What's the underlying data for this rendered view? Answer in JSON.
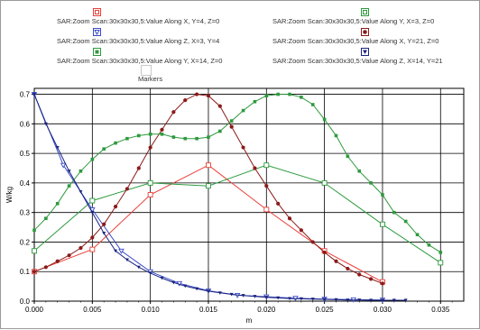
{
  "legend": {
    "items": [
      {
        "label": "SAR:Zoom Scan:30x30x30,5:Value Along X, Y=4, Z=0",
        "color": "#e8403a",
        "marker": "open-square"
      },
      {
        "label": "SAR:Zoom Scan:30x30x30,5:Value Along Y, X=3, Z=0",
        "color": "#2d9a3e",
        "marker": "open-square"
      },
      {
        "label": "SAR:Zoom Scan:30x30x30,5:Value Along Z, X=3, Y=4",
        "color": "#3a4cc9",
        "marker": "open-triangle-down"
      },
      {
        "label": "SAR:Zoom Scan:30x30x30,5:Value Along X, Y=21, Z=0",
        "color": "#8b1a1a",
        "marker": "filled-circle"
      },
      {
        "label": "SAR:Zoom Scan:30x30x30,5:Value Along Y, X=14, Z=0",
        "color": "#2d9a3e",
        "marker": "filled-square"
      },
      {
        "label": "SAR:Zoom Scan:30x30x30,5:Value Along Z, X=14, Y=21",
        "color": "#1a237e",
        "marker": "filled-triangle-down"
      }
    ],
    "markers_label": "Markers"
  },
  "chart_data": {
    "type": "line",
    "xlabel": "m",
    "ylabel": "W/kg",
    "xlim": [
      0,
      0.037
    ],
    "ylim": [
      0,
      0.72
    ],
    "x_ticks": [
      "0.000",
      "0.005",
      "0.010",
      "0.015",
      "0.020",
      "0.025",
      "0.030",
      "0.035"
    ],
    "y_ticks": [
      "0.0",
      "0.1",
      "0.2",
      "0.3",
      "0.4",
      "0.5",
      "0.6",
      "0.7"
    ],
    "grid": true,
    "series": [
      {
        "name": "SAR:Zoom Scan:30x30x30,5:Value Along X, Y=4, Z=0",
        "color": "#e8403a",
        "marker": "open-square",
        "x": [
          0,
          0.005,
          0.01,
          0.015,
          0.02,
          0.025,
          0.03
        ],
        "y": [
          0.1,
          0.175,
          0.36,
          0.46,
          0.31,
          0.17,
          0.065
        ]
      },
      {
        "name": "SAR:Zoom Scan:30x30x30,5:Value Along Y, X=3, Z=0",
        "color": "#2d9a3e",
        "marker": "open-square",
        "x": [
          0,
          0.005,
          0.01,
          0.015,
          0.02,
          0.025,
          0.03,
          0.035
        ],
        "y": [
          0.17,
          0.34,
          0.4,
          0.39,
          0.46,
          0.4,
          0.26,
          0.13
        ]
      },
      {
        "name": "SAR:Zoom Scan:30x30x30,5:Value Along Z, X=3, Y=4",
        "color": "#3a4cc9",
        "marker": "open-triangle-down",
        "x": [
          0,
          0.0025,
          0.005,
          0.0075,
          0.01,
          0.0125,
          0.015,
          0.0175,
          0.02,
          0.0225,
          0.025,
          0.0275,
          0.03
        ],
        "y": [
          0.7,
          0.46,
          0.31,
          0.17,
          0.1,
          0.06,
          0.035,
          0.02,
          0.015,
          0.01,
          0.007,
          0.005,
          0.004
        ]
      },
      {
        "name": "SAR:Zoom Scan:30x30x30,5:Value Along X, Y=21, Z=0",
        "color": "#8b1a1a",
        "marker": "filled-circle",
        "x": [
          0,
          0.001,
          0.002,
          0.003,
          0.004,
          0.005,
          0.006,
          0.007,
          0.008,
          0.009,
          0.01,
          0.011,
          0.012,
          0.013,
          0.014,
          0.015,
          0.016,
          0.017,
          0.018,
          0.019,
          0.02,
          0.021,
          0.022,
          0.023,
          0.024,
          0.025,
          0.026,
          0.027,
          0.028,
          0.029,
          0.03
        ],
        "y": [
          0.1,
          0.115,
          0.135,
          0.155,
          0.18,
          0.215,
          0.26,
          0.32,
          0.38,
          0.45,
          0.52,
          0.58,
          0.64,
          0.68,
          0.7,
          0.695,
          0.66,
          0.59,
          0.52,
          0.45,
          0.39,
          0.33,
          0.28,
          0.24,
          0.2,
          0.165,
          0.135,
          0.11,
          0.09,
          0.075,
          0.06
        ]
      },
      {
        "name": "SAR:Zoom Scan:30x30x30,5:Value Along Y, X=14, Z=0",
        "color": "#2d9a3e",
        "marker": "filled-square",
        "x": [
          0,
          0.001,
          0.002,
          0.003,
          0.004,
          0.005,
          0.006,
          0.007,
          0.008,
          0.009,
          0.01,
          0.011,
          0.012,
          0.013,
          0.014,
          0.015,
          0.016,
          0.017,
          0.018,
          0.019,
          0.02,
          0.021,
          0.022,
          0.023,
          0.024,
          0.025,
          0.026,
          0.027,
          0.028,
          0.029,
          0.03,
          0.031,
          0.032,
          0.033,
          0.034,
          0.035
        ],
        "y": [
          0.24,
          0.28,
          0.33,
          0.39,
          0.44,
          0.48,
          0.515,
          0.535,
          0.55,
          0.56,
          0.565,
          0.565,
          0.555,
          0.55,
          0.55,
          0.555,
          0.575,
          0.61,
          0.645,
          0.675,
          0.695,
          0.7,
          0.7,
          0.69,
          0.665,
          0.615,
          0.56,
          0.49,
          0.44,
          0.4,
          0.36,
          0.3,
          0.27,
          0.225,
          0.19,
          0.165
        ]
      },
      {
        "name": "SAR:Zoom Scan:30x30x30,5:Value Along Z, X=14, Y=21",
        "color": "#1a237e",
        "marker": "filled-triangle-down",
        "x": [
          0,
          0.001,
          0.002,
          0.003,
          0.004,
          0.005,
          0.006,
          0.007,
          0.008,
          0.009,
          0.01,
          0.011,
          0.012,
          0.013,
          0.014,
          0.015,
          0.016,
          0.017,
          0.018,
          0.019,
          0.02,
          0.021,
          0.022,
          0.023,
          0.024,
          0.025,
          0.026,
          0.027,
          0.028,
          0.029,
          0.03,
          0.031,
          0.032
        ],
        "y": [
          0.7,
          0.6,
          0.52,
          0.44,
          0.37,
          0.3,
          0.23,
          0.17,
          0.14,
          0.115,
          0.095,
          0.078,
          0.063,
          0.051,
          0.042,
          0.034,
          0.028,
          0.023,
          0.019,
          0.016,
          0.013,
          0.011,
          0.009,
          0.008,
          0.007,
          0.006,
          0.005,
          0.004,
          0.004,
          0.003,
          0.003,
          0.003,
          0.003
        ]
      }
    ]
  }
}
